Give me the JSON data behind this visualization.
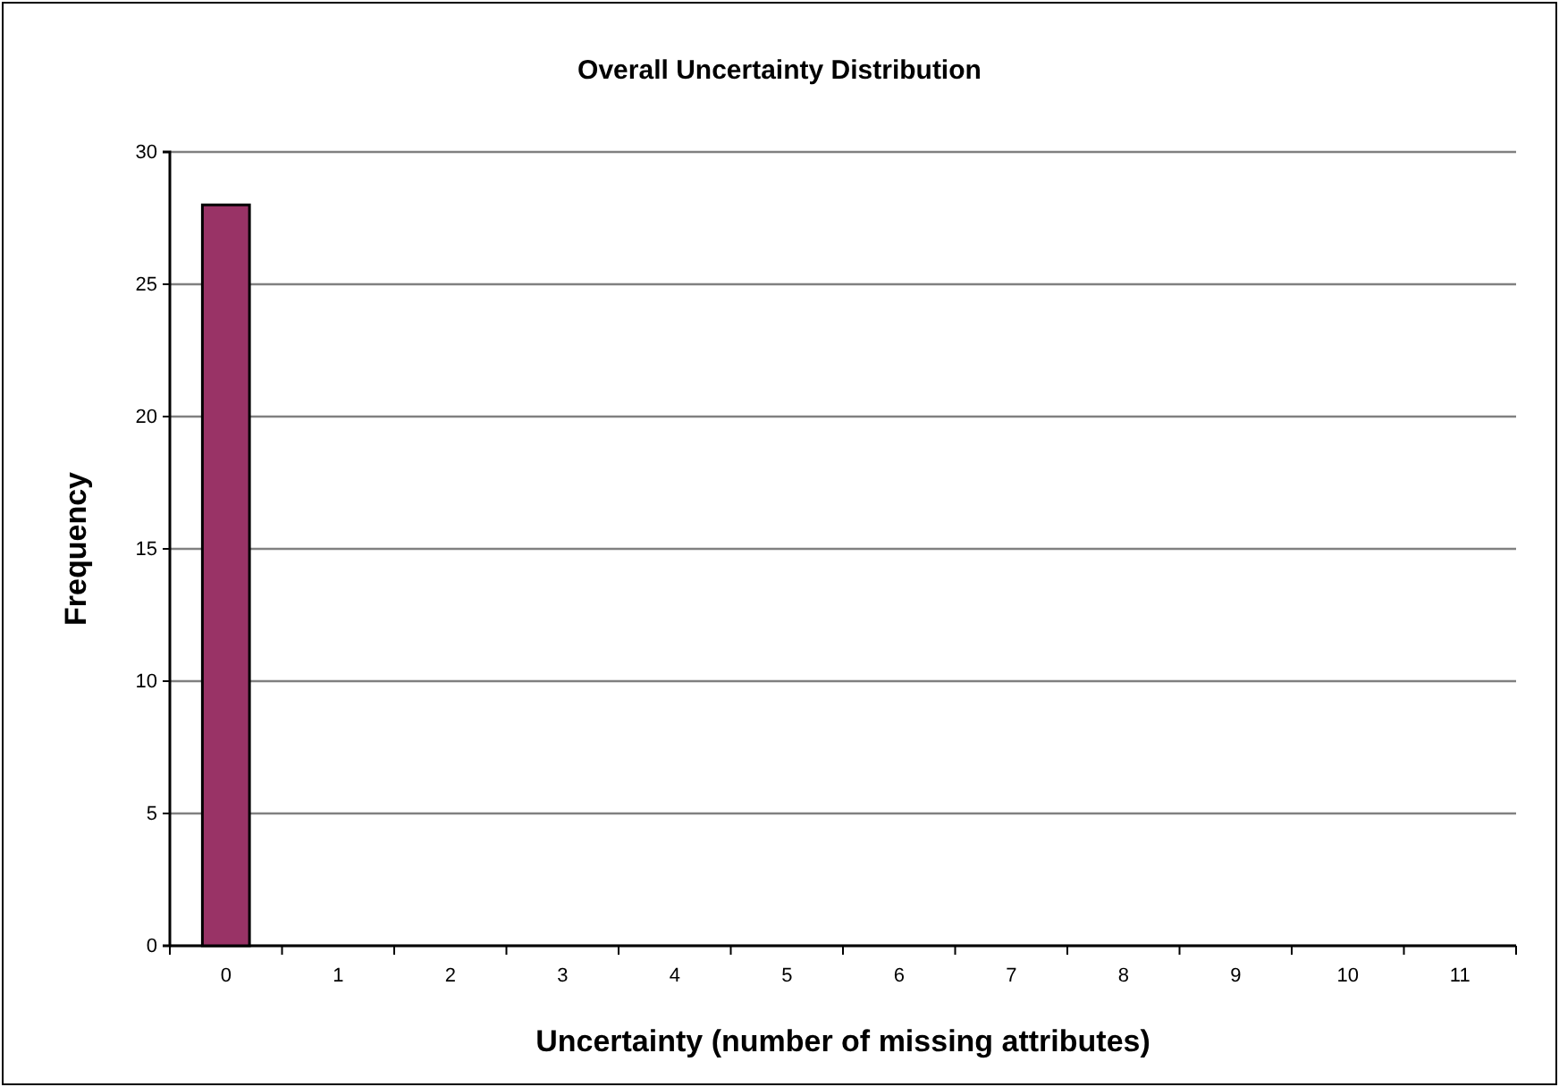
{
  "chart_data": {
    "type": "bar",
    "title": "Overall Uncertainty Distribution",
    "xlabel": "Uncertainty (number of missing attributes)",
    "ylabel": "Frequency",
    "categories": [
      "0",
      "1",
      "2",
      "3",
      "4",
      "5",
      "6",
      "7",
      "8",
      "9",
      "10",
      "11"
    ],
    "series": [
      {
        "color": "#993366",
        "values": [
          28,
          0,
          0,
          0,
          0,
          0,
          0,
          0,
          0,
          0,
          0,
          0
        ]
      }
    ],
    "ylim": [
      0,
      30
    ],
    "yticks": [
      0,
      5,
      10,
      15,
      20,
      25,
      30
    ],
    "grid": "y",
    "legend": false
  }
}
